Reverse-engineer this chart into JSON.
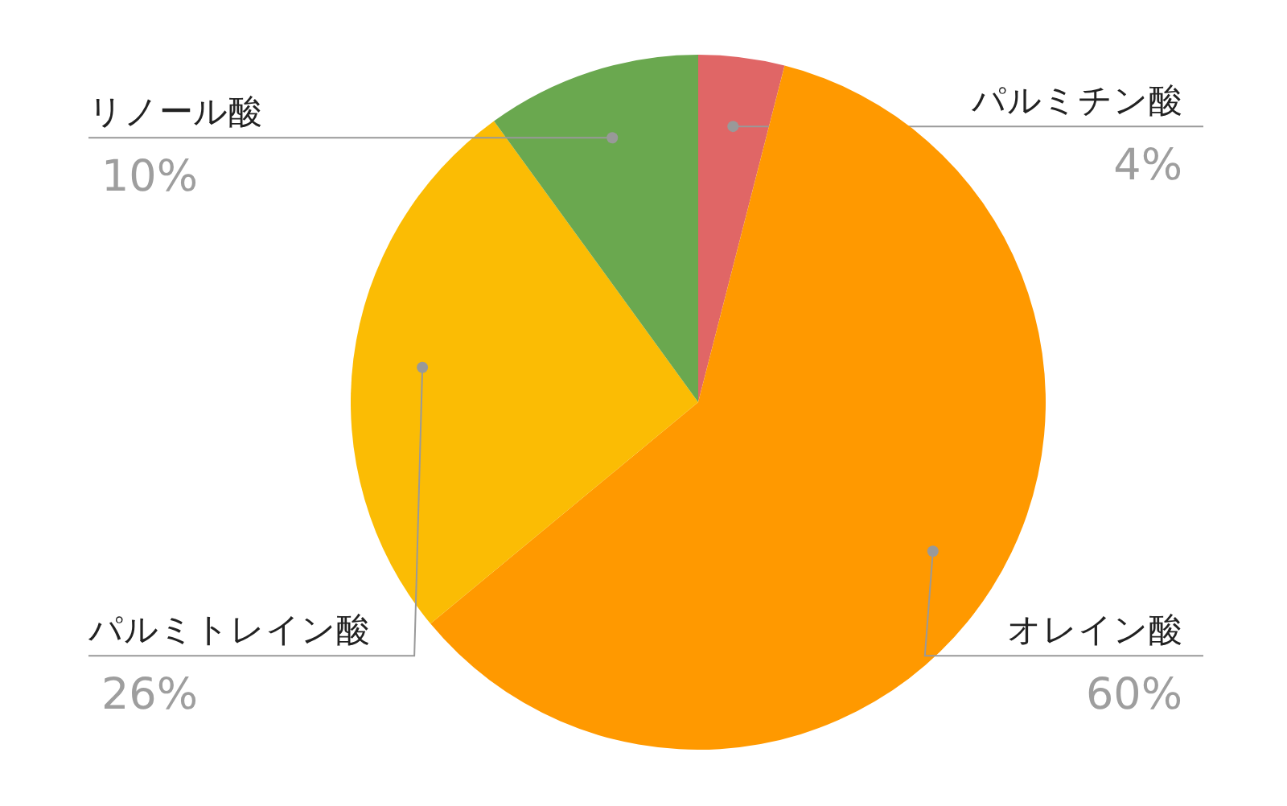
{
  "chart_data": {
    "type": "pie",
    "categories": [
      "パルミチン酸",
      "オレイン酸",
      "パルミトレイン酸",
      "リノール酸"
    ],
    "values": [
      4,
      60,
      26,
      10
    ],
    "colors": [
      "#e06666",
      "#ff9900",
      "#fbbc04",
      "#6aa84f"
    ],
    "value_labels": [
      "4%",
      "60%",
      "26%",
      "10%"
    ]
  }
}
